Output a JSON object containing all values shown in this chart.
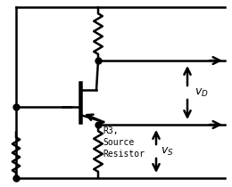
{
  "bg_color": "#ffffff",
  "line_color": "#000000",
  "lw": 1.8,
  "fig_width": 2.6,
  "fig_height": 2.1,
  "dpi": 100,
  "r3_label": "R3,\nSource\nResistor"
}
